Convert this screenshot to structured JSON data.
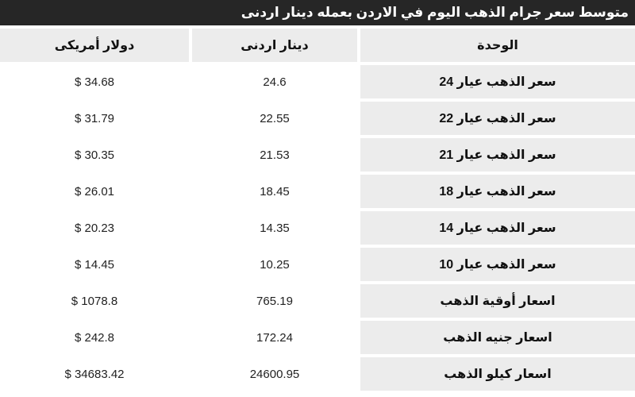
{
  "title": "متوسط سعر جرام الذهب اليوم في الاردن بعمله دينار اردنى",
  "table": {
    "columns": [
      {
        "key": "unit",
        "label": "الوحدة"
      },
      {
        "key": "jod",
        "label": "دينار اردنى"
      },
      {
        "key": "usd",
        "label": "دولار أمريكى"
      }
    ],
    "rows": [
      {
        "unit": "سعر الذهب عيار 24",
        "jod": "24.6",
        "usd": "$ 34.68"
      },
      {
        "unit": "سعر الذهب عيار 22",
        "jod": "22.55",
        "usd": "$ 31.79"
      },
      {
        "unit": "سعر الذهب عيار 21",
        "jod": "21.53",
        "usd": "$ 30.35"
      },
      {
        "unit": "سعر الذهب عيار 18",
        "jod": "18.45",
        "usd": "$ 26.01"
      },
      {
        "unit": "سعر الذهب عيار 14",
        "jod": "14.35",
        "usd": "$ 20.23"
      },
      {
        "unit": "سعر الذهب عيار 10",
        "jod": "10.25",
        "usd": "$ 14.45"
      },
      {
        "unit": "اسعار أوقية الذهب",
        "jod": "765.19",
        "usd": "$ 1078.8"
      },
      {
        "unit": "اسعار جنيه الذهب",
        "jod": "172.24",
        "usd": "$ 242.8"
      },
      {
        "unit": "اسعار كيلو الذهب",
        "jod": "24600.95",
        "usd": "$ 34683.42"
      }
    ]
  },
  "colors": {
    "header_bar": "#262626",
    "cell_gray": "#ececec",
    "page_bg": "#ffffff",
    "title_text": "#ffffff",
    "label_text": "#111111",
    "value_text": "#222222"
  }
}
